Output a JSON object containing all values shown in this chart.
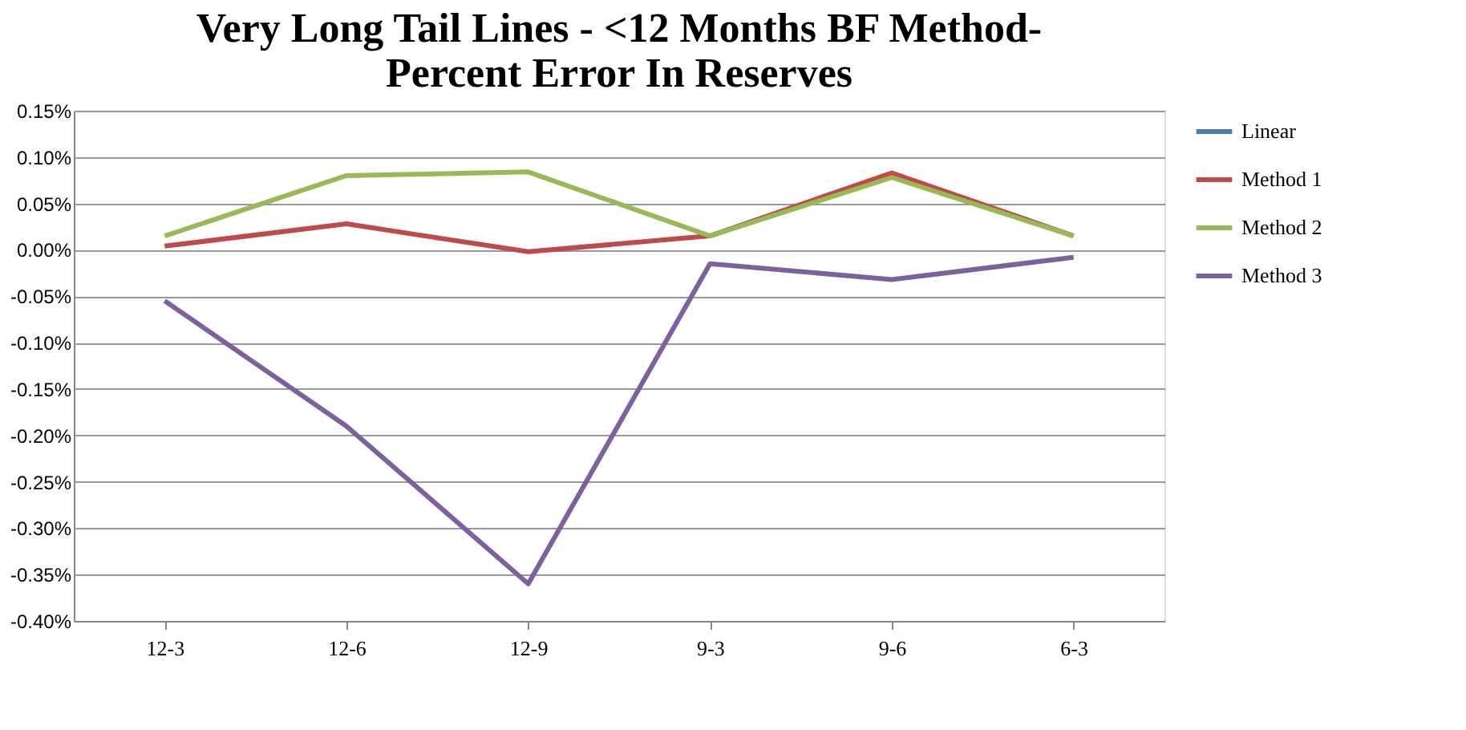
{
  "chart_data": {
    "type": "line",
    "title": "Very Long Tail Lines - <12 Months BF Method-\nPercent Error In Reserves",
    "categories": [
      "12-3",
      "12-6",
      "12-9",
      "9-3",
      "9-6",
      "6-3"
    ],
    "series": [
      {
        "name": "Linear",
        "color": "#4a7ebb",
        "values": [
          null,
          null,
          null,
          null,
          null,
          null
        ]
      },
      {
        "name": "Method 1",
        "color": "#be4b48",
        "values": [
          0.004,
          0.028,
          -0.002,
          0.015,
          0.083,
          0.015
        ]
      },
      {
        "name": "Method 2",
        "color": "#98b954",
        "values": [
          0.015,
          0.08,
          0.084,
          0.015,
          0.078,
          0.015
        ]
      },
      {
        "name": "Method 3",
        "color": "#7d60a0",
        "values": [
          -0.055,
          -0.19,
          -0.36,
          -0.015,
          -0.032,
          -0.008
        ]
      }
    ],
    "ylim": [
      -0.4,
      0.15
    ],
    "yticks": [
      {
        "value": -0.4,
        "label": "-0.40%"
      },
      {
        "value": -0.35,
        "label": "-0.35%"
      },
      {
        "value": -0.3,
        "label": "-0.30%"
      },
      {
        "value": -0.25,
        "label": "-0.25%"
      },
      {
        "value": -0.2,
        "label": "-0.20%"
      },
      {
        "value": -0.15,
        "label": "-0.15%"
      },
      {
        "value": -0.1,
        "label": "-0.10%"
      },
      {
        "value": -0.05,
        "label": "-0.05%"
      },
      {
        "value": 0,
        "label": "0.00%"
      },
      {
        "value": 0.05,
        "label": "0.05%"
      },
      {
        "value": 0.1,
        "label": "0.10%"
      },
      {
        "value": 0.15,
        "label": "0.15%"
      }
    ],
    "grid": "y",
    "legend": "right",
    "marker": "none",
    "line_style": "solid"
  }
}
